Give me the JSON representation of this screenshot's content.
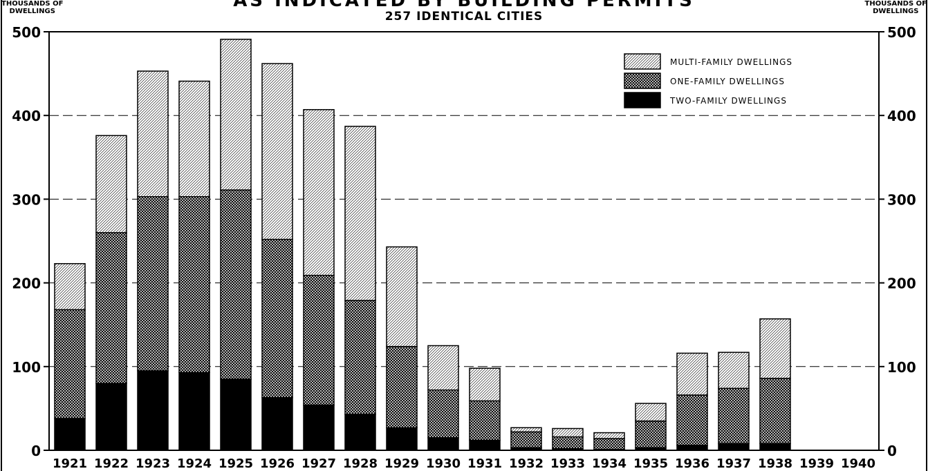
{
  "title": "AS INDICATED BY BUILDING PERMITS",
  "subtitle": "257 IDENTICAL CITIES",
  "left_unit": [
    "THOUSANDS OF",
    "DWELLINGS"
  ],
  "right_unit": [
    "THOUSANDS OF",
    "DWELLINGS"
  ],
  "chart_data": {
    "type": "bar",
    "stacked": true,
    "title": "AS INDICATED BY BUILDING PERMITS",
    "subtitle": "257 IDENTICAL CITIES",
    "ylabel": "THOUSANDS OF DWELLINGS",
    "ylim": [
      0,
      500
    ],
    "yticks": [
      0,
      100,
      200,
      300,
      400,
      500
    ],
    "grid": "dashed horizontal",
    "legend_position": "top-right",
    "categories": [
      "1921",
      "1922",
      "1923",
      "1924",
      "1925",
      "1926",
      "1927",
      "1928",
      "1929",
      "1930",
      "1931",
      "1932",
      "1933",
      "1934",
      "1935",
      "1936",
      "1937",
      "1938",
      "1939",
      "1940"
    ],
    "series": [
      {
        "name": "TWO-FAMILY DWELLINGS",
        "pattern": "solid",
        "color": "#000000",
        "values": [
          38,
          80,
          95,
          93,
          85,
          63,
          54,
          43,
          27,
          15,
          12,
          3,
          2,
          1,
          3,
          6,
          8,
          8,
          null,
          null
        ]
      },
      {
        "name": "ONE-FAMILY DWELLINGS",
        "pattern": "crosshatch",
        "color": "#000000",
        "values": [
          130,
          180,
          208,
          210,
          226,
          189,
          155,
          136,
          97,
          57,
          47,
          19,
          14,
          13,
          32,
          60,
          66,
          78,
          null,
          null
        ]
      },
      {
        "name": "MULTI-FAMILY DWELLINGS",
        "pattern": "diagonal",
        "color": "#000000",
        "values": [
          55,
          116,
          150,
          138,
          180,
          210,
          198,
          208,
          119,
          53,
          39,
          5,
          10,
          7,
          21,
          50,
          43,
          71,
          null,
          null
        ]
      }
    ],
    "legend_order": [
      "MULTI-FAMILY DWELLINGS",
      "ONE-FAMILY DWELLINGS",
      "TWO-FAMILY DWELLINGS"
    ]
  }
}
